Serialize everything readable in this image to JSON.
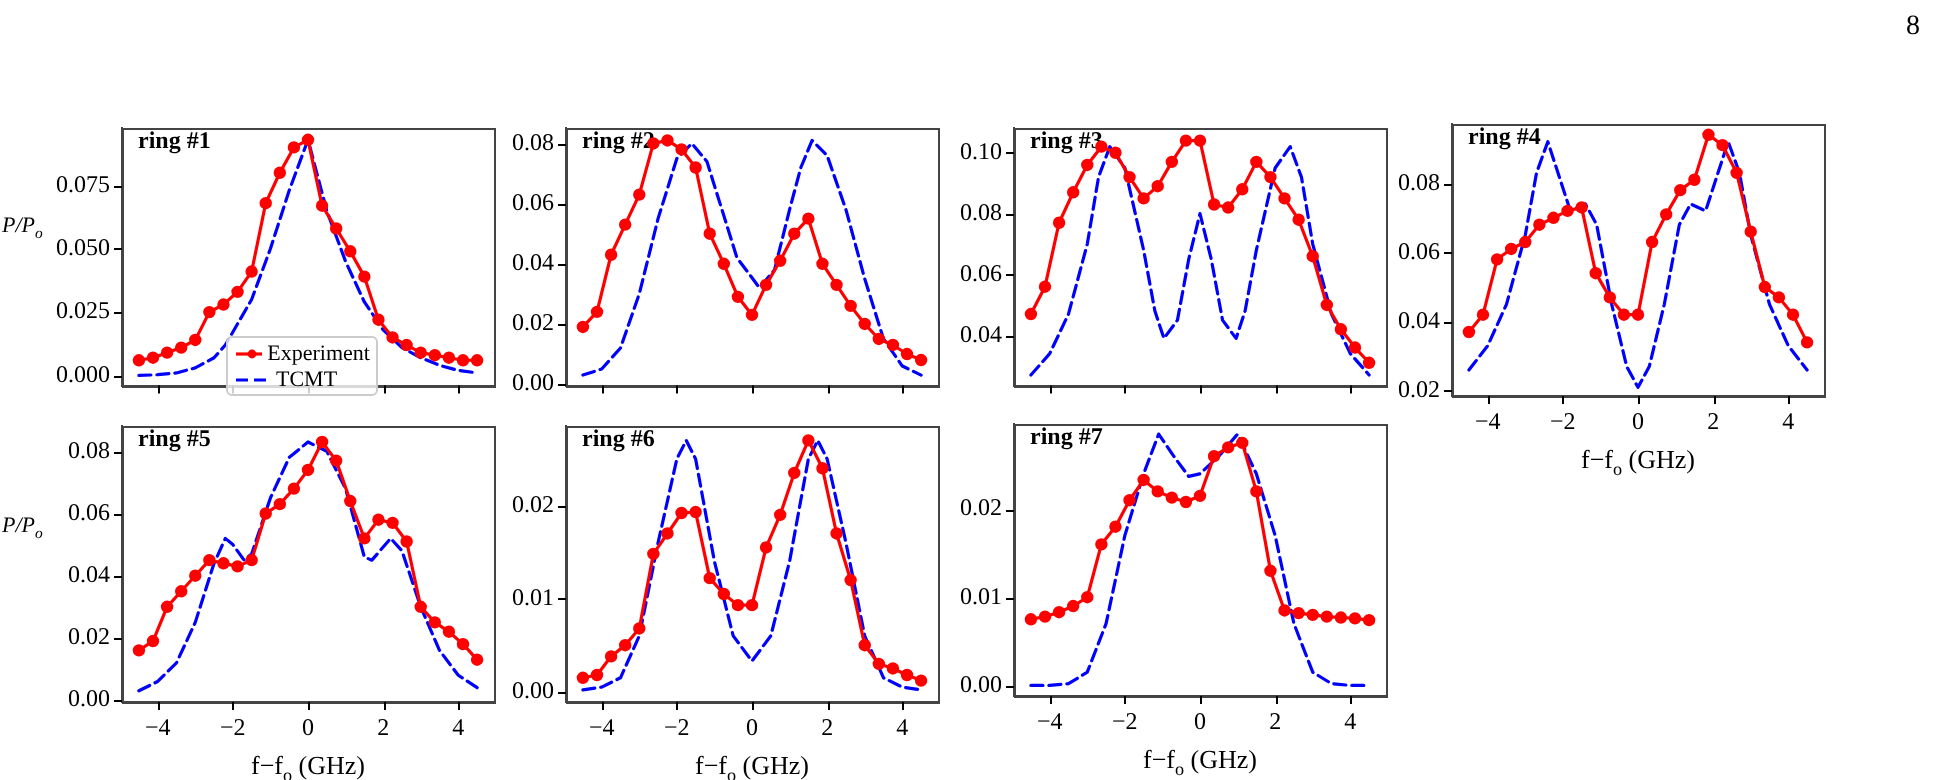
{
  "chart_data": [
    {
      "type": "line",
      "title": "ring #1",
      "ylabel": "P/P$_{o}$",
      "legend": "bottom",
      "tick_labels": "y",
      "xlim": [
        -4.95,
        4.95
      ],
      "ylim": [
        -0.004,
        0.0975
      ],
      "xticks": [
        {
          "value": -4,
          "label": null
        },
        {
          "value": -2,
          "label": null
        },
        {
          "value": 0,
          "label": null
        },
        {
          "value": 2,
          "label": null
        },
        {
          "value": 4,
          "label": null
        }
      ],
      "yticks": [
        {
          "value": 0,
          "label": "0.000"
        },
        0.025,
        {
          "value": 0.05,
          "label": "0.050"
        },
        0.075
      ],
      "series": [
        {
          "name": "Experiment",
          "color": "#ff0000",
          "marker": "circle",
          "line_style": "solid",
          "x": [
            -4.5,
            -4.125,
            -3.75,
            -3.375,
            -3,
            -2.625,
            -2.25,
            -1.875,
            -1.5,
            -1.125,
            -0.75,
            -0.375,
            0,
            0.375,
            0.75,
            1.125,
            1.5,
            1.875,
            2.25,
            2.625,
            3,
            3.375,
            3.75,
            4.125,
            4.5
          ],
          "values": [
            0.006,
            0.007,
            0.009,
            0.011,
            0.014,
            0.025,
            0.028,
            0.033,
            0.041,
            0.068,
            0.08,
            0.09,
            0.093,
            0.067,
            0.058,
            0.049,
            0.039,
            0.022,
            0.015,
            0.012,
            0.009,
            0.008,
            0.007,
            0.006,
            0.006
          ]
        },
        {
          "name": "TCMT",
          "color": "#0000ff",
          "marker": "none",
          "line_style": "dashed",
          "x": [
            -4.5,
            -4,
            -3.5,
            -3,
            -2.5,
            -2.2,
            -1.5,
            -1,
            -0.5,
            0,
            0.5,
            1,
            1.5,
            2,
            2.5,
            3,
            3.5,
            4,
            4.5
          ],
          "values": [
            0,
            0.0003,
            0.001,
            0.003,
            0.007,
            0.012,
            0.03,
            0.05,
            0.073,
            0.093,
            0.065,
            0.045,
            0.029,
            0.018,
            0.011,
            0.007,
            0.004,
            0.002,
            0.001
          ]
        }
      ]
    },
    {
      "type": "line",
      "title": "ring #2",
      "tick_labels": "y",
      "xlim": [
        -4.95,
        4.95
      ],
      "ylim": [
        -0.0005,
        0.085
      ],
      "xticks": [
        {
          "value": -4,
          "label": null
        },
        {
          "value": -2,
          "label": null
        },
        {
          "value": 0,
          "label": null
        },
        {
          "value": 2,
          "label": null
        },
        {
          "value": 4,
          "label": null
        }
      ],
      "yticks": [
        {
          "value": 0,
          "label": "0.00"
        },
        {
          "value": 0.02,
          "label": "0.02"
        },
        {
          "value": 0.04,
          "label": "0.04"
        },
        {
          "value": 0.06,
          "label": "0.06"
        },
        {
          "value": 0.08,
          "label": "0.08"
        }
      ],
      "series": [
        {
          "color": "#ff0000",
          "marker": "circle",
          "line_style": "solid",
          "x": [
            -4.5,
            -4.125,
            -3.75,
            -3.375,
            -3,
            -2.625,
            -2.25,
            -1.875,
            -1.5,
            -1.125,
            -0.75,
            -0.375,
            0,
            0.375,
            0.75,
            1.125,
            1.5,
            1.875,
            2.25,
            2.625,
            3,
            3.375,
            3.75,
            4.125,
            4.5
          ],
          "values": [
            0.019,
            0.024,
            0.043,
            0.053,
            0.063,
            0.08,
            0.081,
            0.078,
            0.072,
            0.05,
            0.04,
            0.029,
            0.023,
            0.033,
            0.041,
            0.05,
            0.055,
            0.04,
            0.033,
            0.026,
            0.02,
            0.015,
            0.013,
            0.01,
            0.008
          ]
        },
        {
          "color": "#0000ff",
          "marker": "none",
          "line_style": "dashed",
          "x": [
            -4.5,
            -4,
            -3.5,
            -3,
            -2.5,
            -2,
            -1.6,
            -1.2,
            -0.8,
            -0.4,
            0.2,
            0.6,
            1,
            1.3,
            1.6,
            2,
            2.5,
            3,
            3.5,
            4,
            4.5
          ],
          "values": [
            0.003,
            0.005,
            0.012,
            0.03,
            0.055,
            0.075,
            0.08,
            0.074,
            0.058,
            0.042,
            0.032,
            0.038,
            0.058,
            0.072,
            0.081,
            0.076,
            0.058,
            0.035,
            0.015,
            0.006,
            0.003
          ]
        }
      ]
    },
    {
      "type": "line",
      "title": "ring #3",
      "tick_labels": "y",
      "xlim": [
        -4.95,
        4.95
      ],
      "ylim": [
        0.0235,
        0.108
      ],
      "xticks": [
        {
          "value": -4,
          "label": null
        },
        {
          "value": -2,
          "label": null
        },
        {
          "value": 0,
          "label": null
        },
        {
          "value": 2,
          "label": null
        },
        {
          "value": 4,
          "label": null
        }
      ],
      "yticks": [
        0.04,
        0.06,
        0.08,
        {
          "value": 0.1,
          "label": "0.10"
        }
      ],
      "series": [
        {
          "color": "#ff0000",
          "marker": "circle",
          "line_style": "solid",
          "x": [
            -4.5,
            -4.125,
            -3.75,
            -3.375,
            -3,
            -2.625,
            -2.25,
            -1.875,
            -1.5,
            -1.125,
            -0.75,
            -0.375,
            0,
            0.375,
            0.75,
            1.125,
            1.5,
            1.875,
            2.25,
            2.625,
            3,
            3.375,
            3.75,
            4.125,
            4.5
          ],
          "values": [
            0.047,
            0.056,
            0.077,
            0.087,
            0.096,
            0.102,
            0.1,
            0.092,
            0.085,
            0.089,
            0.097,
            0.104,
            0.104,
            0.083,
            0.082,
            0.088,
            0.097,
            0.092,
            0.085,
            0.078,
            0.066,
            0.05,
            0.042,
            0.036,
            0.031
          ]
        },
        {
          "color": "#0000ff",
          "marker": "none",
          "line_style": "dashed",
          "x": [
            -4.5,
            -4,
            -3.5,
            -3,
            -2.7,
            -2.4,
            -2,
            -1.5,
            -1.2,
            -0.96,
            -0.6,
            -0.3,
            0,
            0.3,
            0.6,
            0.96,
            1.2,
            1.5,
            2,
            2.4,
            2.7,
            3,
            3.5,
            4,
            4.5
          ],
          "values": [
            0.027,
            0.034,
            0.047,
            0.07,
            0.092,
            0.102,
            0.095,
            0.068,
            0.048,
            0.039,
            0.045,
            0.065,
            0.08,
            0.065,
            0.045,
            0.039,
            0.048,
            0.068,
            0.095,
            0.102,
            0.092,
            0.07,
            0.047,
            0.034,
            0.027
          ]
        }
      ]
    },
    {
      "type": "line",
      "title": "ring #4",
      "xlabel": "f−f$_{o}$ (GHz)",
      "annotations": [
        "8"
      ],
      "xlim": [
        -4.95,
        4.95
      ],
      "ylim": [
        0.0185,
        0.097
      ],
      "xticks": [
        {
          "value": -4,
          "label": "−4"
        },
        {
          "value": -2,
          "label": "−2"
        },
        0,
        2,
        4
      ],
      "yticks": [
        {
          "value": 0.02,
          "label": "0.02"
        },
        {
          "value": 0.04,
          "label": "0.04"
        },
        {
          "value": 0.06,
          "label": "0.06"
        },
        {
          "value": 0.08,
          "label": "0.08"
        }
      ],
      "series": [
        {
          "color": "#ff0000",
          "marker": "circle",
          "line_style": "solid",
          "x": [
            -4.5,
            -4.125,
            -3.75,
            -3.375,
            -3,
            -2.625,
            -2.25,
            -1.875,
            -1.5,
            -1.125,
            -0.75,
            -0.375,
            0,
            0.375,
            0.75,
            1.125,
            1.5,
            1.875,
            2.25,
            2.625,
            3,
            3.375,
            3.75,
            4.125,
            4.5
          ],
          "values": [
            0.037,
            0.042,
            0.058,
            0.061,
            0.063,
            0.068,
            0.07,
            0.072,
            0.073,
            0.054,
            0.047,
            0.042,
            0.042,
            0.063,
            0.071,
            0.078,
            0.081,
            0.094,
            0.091,
            0.083,
            0.066,
            0.05,
            0.047,
            0.042,
            0.034
          ]
        },
        {
          "color": "#0000ff",
          "marker": "none",
          "line_style": "dashed",
          "x": [
            -4.5,
            -4,
            -3.5,
            -3,
            -2.7,
            -2.4,
            -2.1,
            -1.8,
            -1.4,
            -1.1,
            -0.7,
            -0.3,
            0,
            0.3,
            0.7,
            1.1,
            1.4,
            1.8,
            2.1,
            2.4,
            2.7,
            3,
            3.5,
            4,
            4.5
          ],
          "values": [
            0.026,
            0.033,
            0.045,
            0.065,
            0.083,
            0.092,
            0.082,
            0.072,
            0.074,
            0.068,
            0.045,
            0.027,
            0.021,
            0.027,
            0.045,
            0.068,
            0.074,
            0.072,
            0.082,
            0.092,
            0.083,
            0.065,
            0.045,
            0.033,
            0.026
          ]
        }
      ]
    },
    {
      "type": "line",
      "title": "ring #5",
      "ylabel": "P/P$_{o}$",
      "xlabel": "f−f$_{o}$ (GHz)",
      "xlim": [
        -4.95,
        4.95
      ],
      "ylim": [
        -0.0006,
        0.088
      ],
      "xticks": [
        {
          "value": -4,
          "label": "−4"
        },
        {
          "value": -2,
          "label": "−2"
        },
        0,
        2,
        4
      ],
      "yticks": [
        {
          "value": 0,
          "label": "0.00"
        },
        {
          "value": 0.02,
          "label": "0.02"
        },
        {
          "value": 0.04,
          "label": "0.04"
        },
        {
          "value": 0.06,
          "label": "0.06"
        },
        {
          "value": 0.08,
          "label": "0.08"
        }
      ],
      "series": [
        {
          "color": "#ff0000",
          "marker": "circle",
          "line_style": "solid",
          "x": [
            -4.5,
            -4.125,
            -3.75,
            -3.375,
            -3,
            -2.625,
            -2.25,
            -1.875,
            -1.5,
            -1.125,
            -0.75,
            -0.375,
            0,
            0.375,
            0.75,
            1.125,
            1.5,
            1.875,
            2.25,
            2.625,
            3,
            3.375,
            3.75,
            4.125,
            4.5
          ],
          "values": [
            0.016,
            0.019,
            0.03,
            0.035,
            0.04,
            0.045,
            0.044,
            0.043,
            0.045,
            0.06,
            0.063,
            0.068,
            0.074,
            0.083,
            0.077,
            0.064,
            0.052,
            0.058,
            0.057,
            0.051,
            0.03,
            0.025,
            0.022,
            0.018,
            0.013
          ]
        },
        {
          "color": "#0000ff",
          "marker": "none",
          "line_style": "dashed",
          "x": [
            -4.5,
            -4,
            -3.5,
            -3,
            -2.5,
            -2.2,
            -2,
            -1.7,
            -1.5,
            -1,
            -0.5,
            0,
            0.5,
            1,
            1.5,
            1.7,
            2.2,
            2.5,
            3,
            3.5,
            4,
            4.5
          ],
          "values": [
            0.003,
            0.006,
            0.012,
            0.025,
            0.044,
            0.052,
            0.05,
            0.045,
            0.047,
            0.065,
            0.078,
            0.083,
            0.08,
            0.068,
            0.046,
            0.045,
            0.052,
            0.048,
            0.03,
            0.016,
            0.008,
            0.004
          ]
        }
      ]
    },
    {
      "type": "line",
      "title": "ring #6",
      "xlabel": "f−f$_{o}$ (GHz)",
      "xlim": [
        -4.95,
        4.95
      ],
      "ylim": [
        -0.0011,
        0.0285
      ],
      "xticks": [
        {
          "value": -4,
          "label": "−4"
        },
        {
          "value": -2,
          "label": "−2"
        },
        0,
        2,
        4
      ],
      "yticks": [
        {
          "value": 0,
          "label": "0.00"
        },
        {
          "value": 0.01,
          "label": "0.01"
        },
        {
          "value": 0.02,
          "label": "0.02"
        }
      ],
      "series": [
        {
          "color": "#ff0000",
          "marker": "circle",
          "line_style": "solid",
          "x": [
            -4.5,
            -4.125,
            -3.75,
            -3.375,
            -3,
            -2.625,
            -2.25,
            -1.875,
            -1.5,
            -1.125,
            -0.75,
            -0.375,
            0,
            0.375,
            0.75,
            1.125,
            1.5,
            1.875,
            2.25,
            2.625,
            3,
            3.375,
            3.75,
            4.125,
            4.5
          ],
          "values": [
            0.0015,
            0.0018,
            0.0038,
            0.005,
            0.0068,
            0.0148,
            0.017,
            0.0192,
            0.0193,
            0.0122,
            0.0105,
            0.0093,
            0.0093,
            0.0155,
            0.019,
            0.0235,
            0.027,
            0.024,
            0.017,
            0.012,
            0.005,
            0.003,
            0.0025,
            0.0018,
            0.0012
          ]
        },
        {
          "color": "#0000ff",
          "marker": "none",
          "line_style": "dashed",
          "x": [
            -4.5,
            -4,
            -3.5,
            -3,
            -2.5,
            -2,
            -1.75,
            -1.5,
            -1,
            -0.5,
            0,
            0.5,
            1,
            1.5,
            1.75,
            2,
            2.5,
            3,
            3.5,
            4,
            4.5
          ],
          "values": [
            0.0002,
            0.0005,
            0.0015,
            0.006,
            0.016,
            0.025,
            0.027,
            0.025,
            0.014,
            0.006,
            0.0033,
            0.006,
            0.014,
            0.025,
            0.027,
            0.025,
            0.016,
            0.006,
            0.0015,
            0.0005,
            0.0002
          ]
        }
      ]
    },
    {
      "type": "line",
      "title": "ring #7",
      "xlabel": "f−f$_{o}$ (GHz)",
      "xlim": [
        -4.95,
        4.95
      ],
      "ylim": [
        -0.0012,
        0.0296
      ],
      "xticks": [
        {
          "value": -4,
          "label": "−4"
        },
        {
          "value": -2,
          "label": "−2"
        },
        0,
        2,
        4
      ],
      "yticks": [
        {
          "value": 0,
          "label": "0.00"
        },
        {
          "value": 0.01,
          "label": "0.01"
        },
        {
          "value": 0.02,
          "label": "0.02"
        }
      ],
      "series": [
        {
          "color": "#ff0000",
          "marker": "circle",
          "line_style": "solid",
          "x": [
            -4.5,
            -4.125,
            -3.75,
            -3.375,
            -3,
            -2.625,
            -2.25,
            -1.875,
            -1.5,
            -1.125,
            -0.75,
            -0.375,
            0,
            0.375,
            0.75,
            1.125,
            1.5,
            1.875,
            2.25,
            2.625,
            3,
            3.375,
            3.75,
            4.125,
            4.5
          ],
          "values": [
            0.0075,
            0.0078,
            0.0083,
            0.009,
            0.01,
            0.016,
            0.018,
            0.021,
            0.0233,
            0.022,
            0.0213,
            0.0208,
            0.0215,
            0.026,
            0.027,
            0.0275,
            0.022,
            0.013,
            0.0085,
            0.0082,
            0.008,
            0.0078,
            0.0077,
            0.0076,
            0.0074
          ]
        },
        {
          "color": "#0000ff",
          "marker": "none",
          "line_style": "dashed",
          "x": [
            -4.5,
            -4,
            -3.5,
            -3,
            -2.5,
            -2,
            -1.5,
            -1.1,
            -0.7,
            -0.3,
            0,
            0.5,
            1,
            1.5,
            2,
            2.5,
            3,
            3.5,
            4,
            4.5
          ],
          "values": [
            0,
            0,
            0.0002,
            0.0015,
            0.007,
            0.017,
            0.024,
            0.0285,
            0.026,
            0.0237,
            0.024,
            0.026,
            0.0285,
            0.024,
            0.017,
            0.007,
            0.0015,
            0.0002,
            0,
            0
          ]
        }
      ]
    }
  ]
}
